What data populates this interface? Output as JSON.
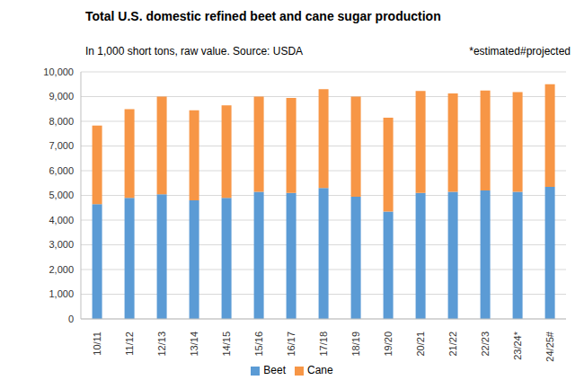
{
  "chart_data": {
    "type": "bar",
    "title": "Total U.S. domestic refined beet and cane sugar production",
    "subtitle": "In 1,000 short tons, raw value. Source: USDA",
    "annotations": [
      "*estimated#projected"
    ],
    "categories": [
      "10/11",
      "11/12",
      "12/13",
      "13/14",
      "14/15",
      "15/16",
      "16/17",
      "17/18",
      "18/19",
      "19/20",
      "20/21",
      "21/22",
      "22/23",
      "23/24*",
      "24/25#"
    ],
    "series": [
      {
        "name": "Beet",
        "color": "#5b9bd5",
        "values": [
          4650,
          4900,
          5050,
          4800,
          4900,
          5150,
          5100,
          5300,
          4950,
          4350,
          5100,
          5150,
          5200,
          5150,
          5350
        ]
      },
      {
        "name": "Cane",
        "color": "#f79646",
        "values": [
          3180,
          3590,
          3950,
          3650,
          3750,
          3850,
          3850,
          4000,
          4050,
          3800,
          4130,
          3980,
          4050,
          4030,
          4150
        ]
      }
    ],
    "stacked": true,
    "ylim": [
      0,
      10000
    ],
    "yticks": [
      0,
      {
        "value": 1000,
        "label": "1,000"
      },
      {
        "value": 2000,
        "label": "2,000"
      },
      {
        "value": 3000,
        "label": "3,000"
      },
      {
        "value": 4000,
        "label": "4,000"
      },
      {
        "value": 5000,
        "label": "5,000"
      },
      {
        "value": 6000,
        "label": "6,000"
      },
      {
        "value": 7000,
        "label": "7,000"
      },
      {
        "value": 8000,
        "label": "8,000"
      },
      {
        "value": 9000,
        "label": "9,000"
      },
      {
        "value": 10000,
        "label": "10,000"
      }
    ],
    "grid": true,
    "legend": "bottom"
  }
}
